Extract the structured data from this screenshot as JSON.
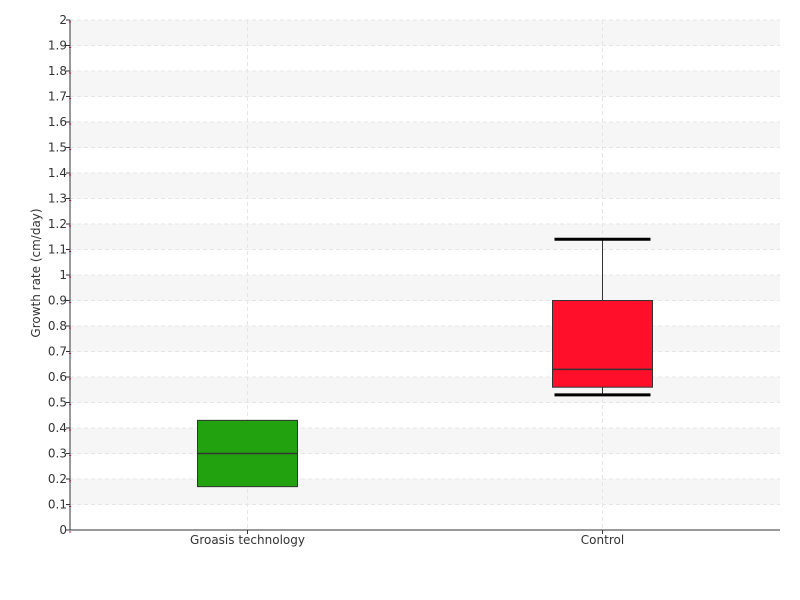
{
  "chart_data": {
    "type": "box",
    "ylabel": "Growth rate (cm/day)",
    "xlabel": "",
    "ylim": [
      0,
      2
    ],
    "yticks": [
      0,
      0.1,
      0.2,
      0.3,
      0.4,
      0.5,
      0.6,
      0.7,
      0.8,
      0.9,
      1,
      1.1,
      1.2,
      1.3,
      1.4,
      1.5,
      1.6,
      1.7,
      1.8,
      1.9,
      2
    ],
    "grid": true,
    "categories": [
      "Groasis technology",
      "Control"
    ],
    "boxes": [
      {
        "category": "Groasis technology",
        "q1": 0.17,
        "median": 0.3,
        "q3": 0.43,
        "whisker_low": null,
        "whisker_high": null,
        "color": "#22a20f"
      },
      {
        "category": "Control",
        "q1": 0.56,
        "median": 0.63,
        "q3": 0.9,
        "whisker_low": 0.53,
        "whisker_high": 1.14,
        "color": "#ff0f2a"
      }
    ]
  }
}
